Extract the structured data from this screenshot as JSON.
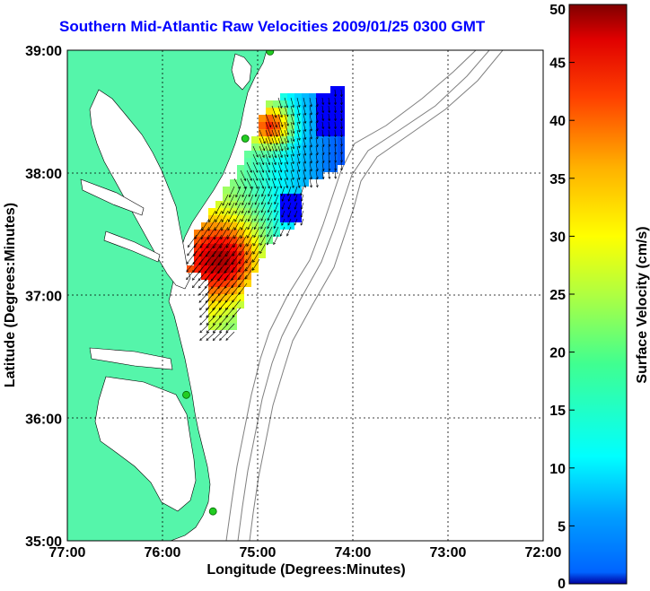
{
  "title": "Southern Mid-Atlantic Raw Velocities 2009/01/25 0300 GMT",
  "map": {
    "xlabel": "Longitude (Degrees:Minutes)",
    "ylabel": "Latitude (Degrees:Minutes)",
    "lon_ticks": [
      "77:00",
      "76:00",
      "75:00",
      "74:00",
      "73:00",
      "72:00"
    ],
    "lat_ticks": [
      "39:00",
      "38:00",
      "37:00",
      "36:00",
      "35:00"
    ],
    "lon_range": [
      -77,
      -72
    ],
    "lat_range": [
      35,
      39
    ],
    "land_color": "#55f5aa",
    "grid": true
  },
  "colorbar": {
    "label": "Surface Velocity (cm/s)",
    "ticks": [
      "50",
      "45",
      "40",
      "35",
      "30",
      "25",
      "20",
      "15",
      "10",
      "5",
      "0"
    ],
    "range": [
      0,
      50
    ],
    "colormap": "jet"
  },
  "stations": [
    {
      "lon": -74.87,
      "lat": 38.99
    },
    {
      "lon": -75.13,
      "lat": 38.28
    },
    {
      "lon": -75.75,
      "lat": 36.19
    },
    {
      "lon": -75.47,
      "lat": 35.24
    }
  ]
}
